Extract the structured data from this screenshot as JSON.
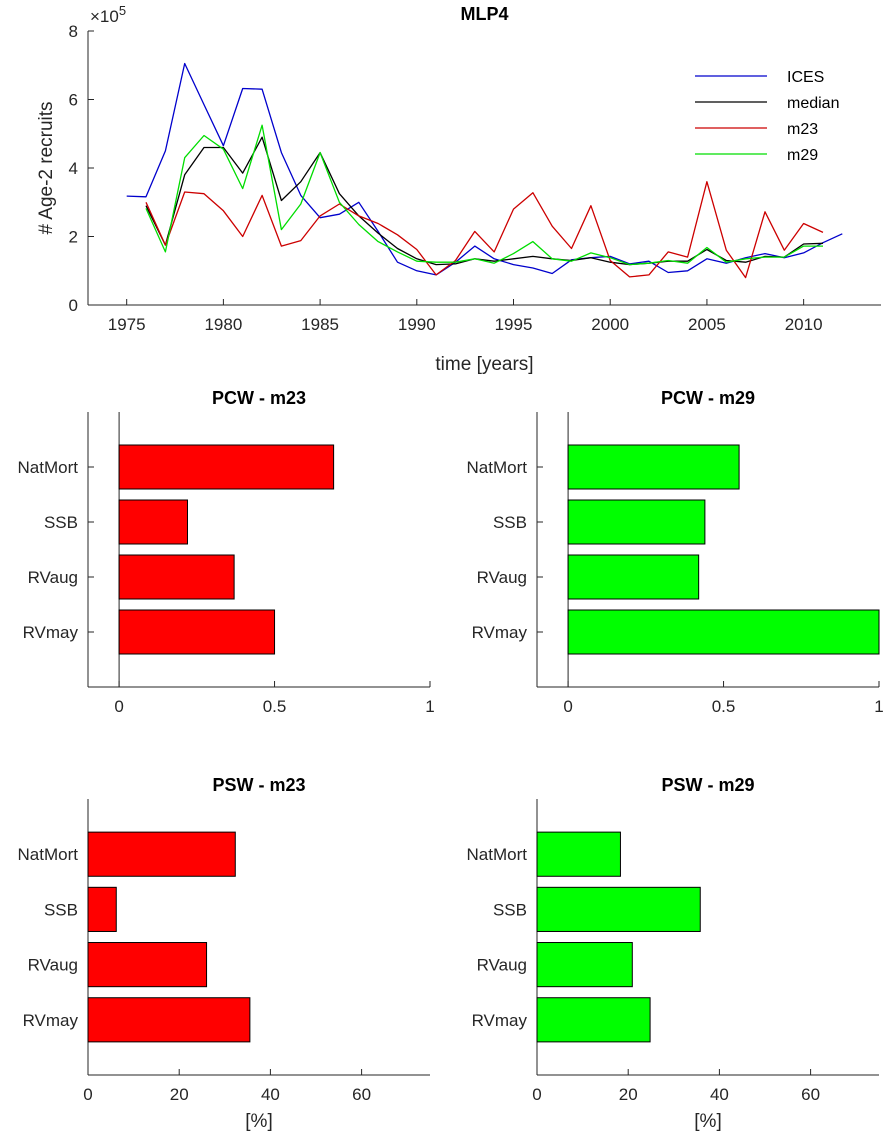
{
  "chart_data": [
    {
      "id": "mlp4",
      "type": "line",
      "title": "MLP4",
      "xlabel": "time [years]",
      "ylabel": "# Age-2 recruits",
      "exponent_label": "×10",
      "exponent_power": "5",
      "xlim": [
        1973,
        2014
      ],
      "ylim": [
        0,
        8
      ],
      "xticks": [
        1975,
        1980,
        1985,
        1990,
        1995,
        2000,
        2005,
        2010
      ],
      "yticks": [
        0,
        2,
        4,
        6,
        8
      ],
      "legend_position": "top-right",
      "series": [
        {
          "name": "ICES",
          "color": "#0000cc",
          "x": [
            1975,
            1976,
            1977,
            1978,
            1979,
            1980,
            1981,
            1982,
            1983,
            1984,
            1985,
            1986,
            1987,
            1988,
            1989,
            1990,
            1991,
            1992,
            1993,
            1994,
            1995,
            1996,
            1997,
            1998,
            1999,
            2000,
            2001,
            2002,
            2003,
            2004,
            2005,
            2006,
            2007,
            2008,
            2009,
            2010,
            2011,
            2012
          ],
          "values": [
            3.18,
            3.16,
            4.5,
            7.05,
            5.85,
            4.65,
            6.32,
            6.3,
            4.45,
            3.2,
            2.55,
            2.65,
            3.0,
            2.15,
            1.25,
            1.0,
            0.88,
            1.25,
            1.72,
            1.35,
            1.18,
            1.08,
            0.92,
            1.32,
            1.38,
            1.42,
            1.2,
            1.28,
            0.95,
            1.0,
            1.35,
            1.22,
            1.38,
            1.5,
            1.38,
            1.52,
            1.82,
            2.08
          ]
        },
        {
          "name": "median",
          "color": "#000000",
          "x": [
            1976,
            1977,
            1978,
            1979,
            1980,
            1981,
            1982,
            1983,
            1984,
            1985,
            1986,
            1987,
            1988,
            1989,
            1990,
            1991,
            1992,
            1993,
            1994,
            1995,
            1996,
            1997,
            1998,
            1999,
            2000,
            2001,
            2002,
            2003,
            2004,
            2005,
            2006,
            2007,
            2008,
            2009,
            2010,
            2011
          ],
          "values": [
            2.9,
            1.75,
            3.8,
            4.6,
            4.6,
            3.85,
            4.9,
            3.05,
            3.6,
            4.45,
            3.25,
            2.6,
            2.1,
            1.65,
            1.35,
            1.18,
            1.2,
            1.35,
            1.28,
            1.35,
            1.42,
            1.35,
            1.3,
            1.38,
            1.25,
            1.18,
            1.22,
            1.28,
            1.28,
            1.62,
            1.3,
            1.25,
            1.42,
            1.4,
            1.78,
            1.8
          ]
        },
        {
          "name": "m23",
          "color": "#cc0000",
          "x": [
            1976,
            1977,
            1978,
            1979,
            1980,
            1981,
            1982,
            1983,
            1984,
            1985,
            1986,
            1987,
            1988,
            1989,
            1990,
            1991,
            1992,
            1993,
            1994,
            1995,
            1996,
            1997,
            1998,
            1999,
            2000,
            2001,
            2002,
            2003,
            2004,
            2005,
            2006,
            2007,
            2008,
            2009,
            2010,
            2011
          ],
          "values": [
            3.0,
            1.75,
            3.3,
            3.25,
            2.75,
            2.0,
            3.2,
            1.72,
            1.88,
            2.6,
            2.95,
            2.6,
            2.38,
            2.05,
            1.62,
            0.88,
            1.3,
            2.15,
            1.55,
            2.8,
            3.28,
            2.3,
            1.65,
            2.9,
            1.3,
            0.82,
            0.88,
            1.55,
            1.4,
            3.6,
            1.6,
            0.8,
            2.72,
            1.6,
            2.38,
            2.12
          ]
        },
        {
          "name": "m29",
          "color": "#00dd00",
          "x": [
            1976,
            1977,
            1978,
            1979,
            1980,
            1981,
            1982,
            1983,
            1984,
            1985,
            1986,
            1987,
            1988,
            1989,
            1990,
            1991,
            1992,
            1993,
            1994,
            1995,
            1996,
            1997,
            1998,
            1999,
            2000,
            2001,
            2002,
            2003,
            2004,
            2005,
            2006,
            2007,
            2008,
            2009,
            2010,
            2011
          ],
          "values": [
            2.82,
            1.55,
            4.3,
            4.95,
            4.55,
            3.4,
            5.25,
            2.2,
            2.95,
            4.45,
            3.0,
            2.35,
            1.85,
            1.55,
            1.28,
            1.25,
            1.25,
            1.35,
            1.22,
            1.5,
            1.85,
            1.35,
            1.28,
            1.52,
            1.38,
            1.18,
            1.22,
            1.3,
            1.22,
            1.68,
            1.25,
            1.35,
            1.4,
            1.4,
            1.72,
            1.72
          ]
        }
      ]
    },
    {
      "id": "pcw-m23",
      "type": "bar",
      "title": "PCW - m23",
      "xlabel": "",
      "color": "#ff0000",
      "categories": [
        "NatMort",
        "SSB",
        "RVaug",
        "RVmay"
      ],
      "values": [
        0.69,
        0.22,
        0.37,
        0.5
      ],
      "xlim": [
        -0.1,
        1
      ],
      "xticks": [
        0,
        0.5,
        1
      ],
      "xtick_labels": [
        "0",
        "0.5",
        "1"
      ],
      "zero_line": true
    },
    {
      "id": "pcw-m29",
      "type": "bar",
      "title": "PCW - m29",
      "xlabel": "",
      "color": "#00ff00",
      "categories": [
        "NatMort",
        "SSB",
        "RVaug",
        "RVmay"
      ],
      "values": [
        0.55,
        0.44,
        0.42,
        1.0
      ],
      "xlim": [
        -0.1,
        1
      ],
      "xticks": [
        0,
        0.5,
        1
      ],
      "xtick_labels": [
        "0",
        "0.5",
        "1"
      ],
      "zero_line": true
    },
    {
      "id": "psw-m23",
      "type": "bar",
      "title": "PSW - m23",
      "xlabel": "[%]",
      "color": "#ff0000",
      "categories": [
        "NatMort",
        "SSB",
        "RVaug",
        "RVmay"
      ],
      "values": [
        32.3,
        6.2,
        26.0,
        35.5
      ],
      "xlim": [
        0,
        75
      ],
      "xticks": [
        0,
        20,
        40,
        60
      ],
      "xtick_labels": [
        "0",
        "20",
        "40",
        "60"
      ],
      "zero_line": false
    },
    {
      "id": "psw-m29",
      "type": "bar",
      "title": "PSW - m29",
      "xlabel": "[%]",
      "color": "#00ff00",
      "categories": [
        "NatMort",
        "SSB",
        "RVaug",
        "RVmay"
      ],
      "values": [
        18.3,
        35.8,
        20.9,
        24.8
      ],
      "xlim": [
        0,
        75
      ],
      "xticks": [
        0,
        20,
        40,
        60
      ],
      "xtick_labels": [
        "0",
        "20",
        "40",
        "60"
      ],
      "zero_line": false
    }
  ]
}
